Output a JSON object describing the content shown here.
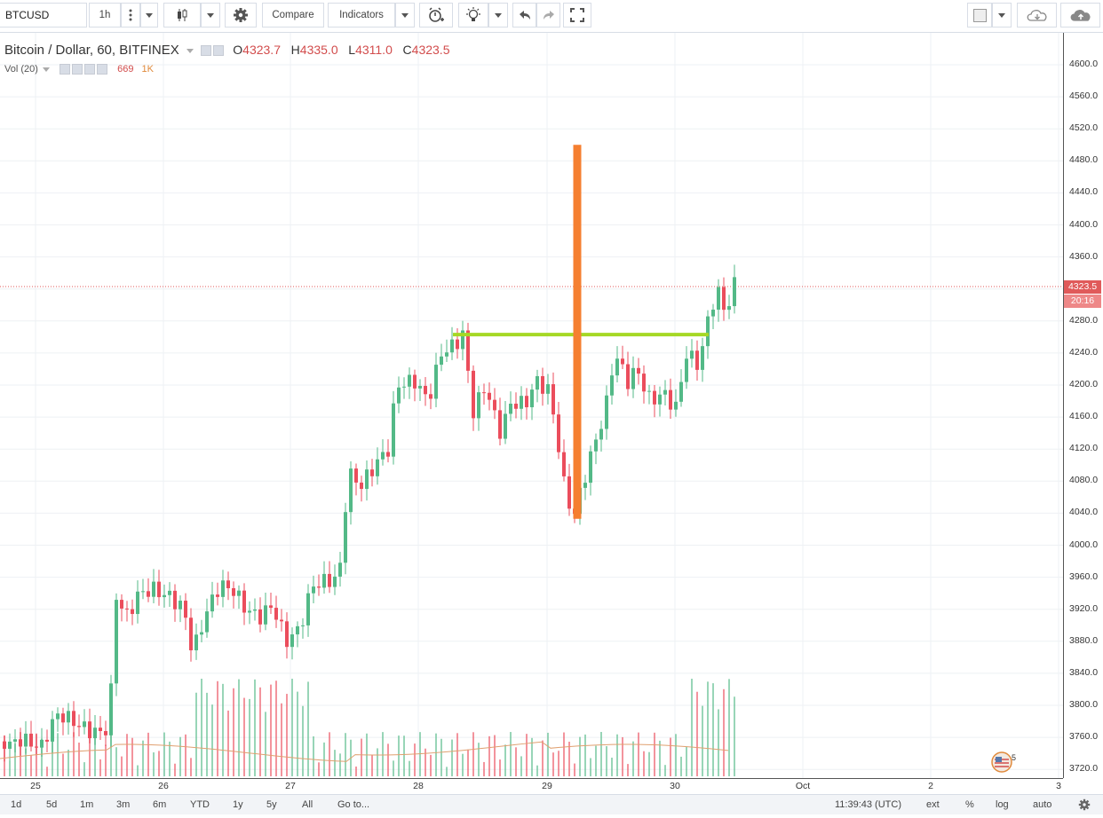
{
  "toolbar": {
    "symbol": "BTCUSD",
    "interval": "1h",
    "compare_label": "Compare",
    "indicators_label": "Indicators"
  },
  "legend": {
    "title": "Bitcoin / Dollar, 60, BITFINEX",
    "o_label": "O",
    "o_value": "4323.7",
    "h_label": "H",
    "h_value": "4335.0",
    "l_label": "L",
    "l_value": "4311.0",
    "c_label": "C",
    "c_value": "4323.5",
    "vol_label": "Vol (20)",
    "vol_value": "669",
    "vol_ma": "1K"
  },
  "price_axis": {
    "labels": [
      "4600.0",
      "4560.0",
      "4520.0",
      "4480.0",
      "4440.0",
      "4400.0",
      "4360.0",
      "4320.0",
      "4280.0",
      "4240.0",
      "4200.0",
      "4160.0",
      "4120.0",
      "4080.0",
      "4040.0",
      "4000.0",
      "3960.0",
      "3920.0",
      "3880.0",
      "3840.0",
      "3800.0",
      "3760.0",
      "3720.0"
    ],
    "last_price": "4323.5",
    "countdown": "20:16"
  },
  "time_axis": {
    "labels": [
      "25",
      "26",
      "27",
      "28",
      "29",
      "30",
      "Oct",
      "2",
      "3"
    ]
  },
  "bottom_bar": {
    "ranges": [
      "1d",
      "5d",
      "1m",
      "3m",
      "6m",
      "YTD",
      "1y",
      "5y",
      "All"
    ],
    "goto": "Go to...",
    "clock": "11:39:43 (UTC)",
    "ext": "ext",
    "percent": "%",
    "log": "log",
    "auto": "auto"
  },
  "colors": {
    "up": "#53b987",
    "down": "#eb4d5c",
    "horizontal_line": "#a5d825",
    "vertical_line": "#f57f30",
    "price_line": "#e05a5a",
    "volume_ma": "#e0a070"
  }
}
